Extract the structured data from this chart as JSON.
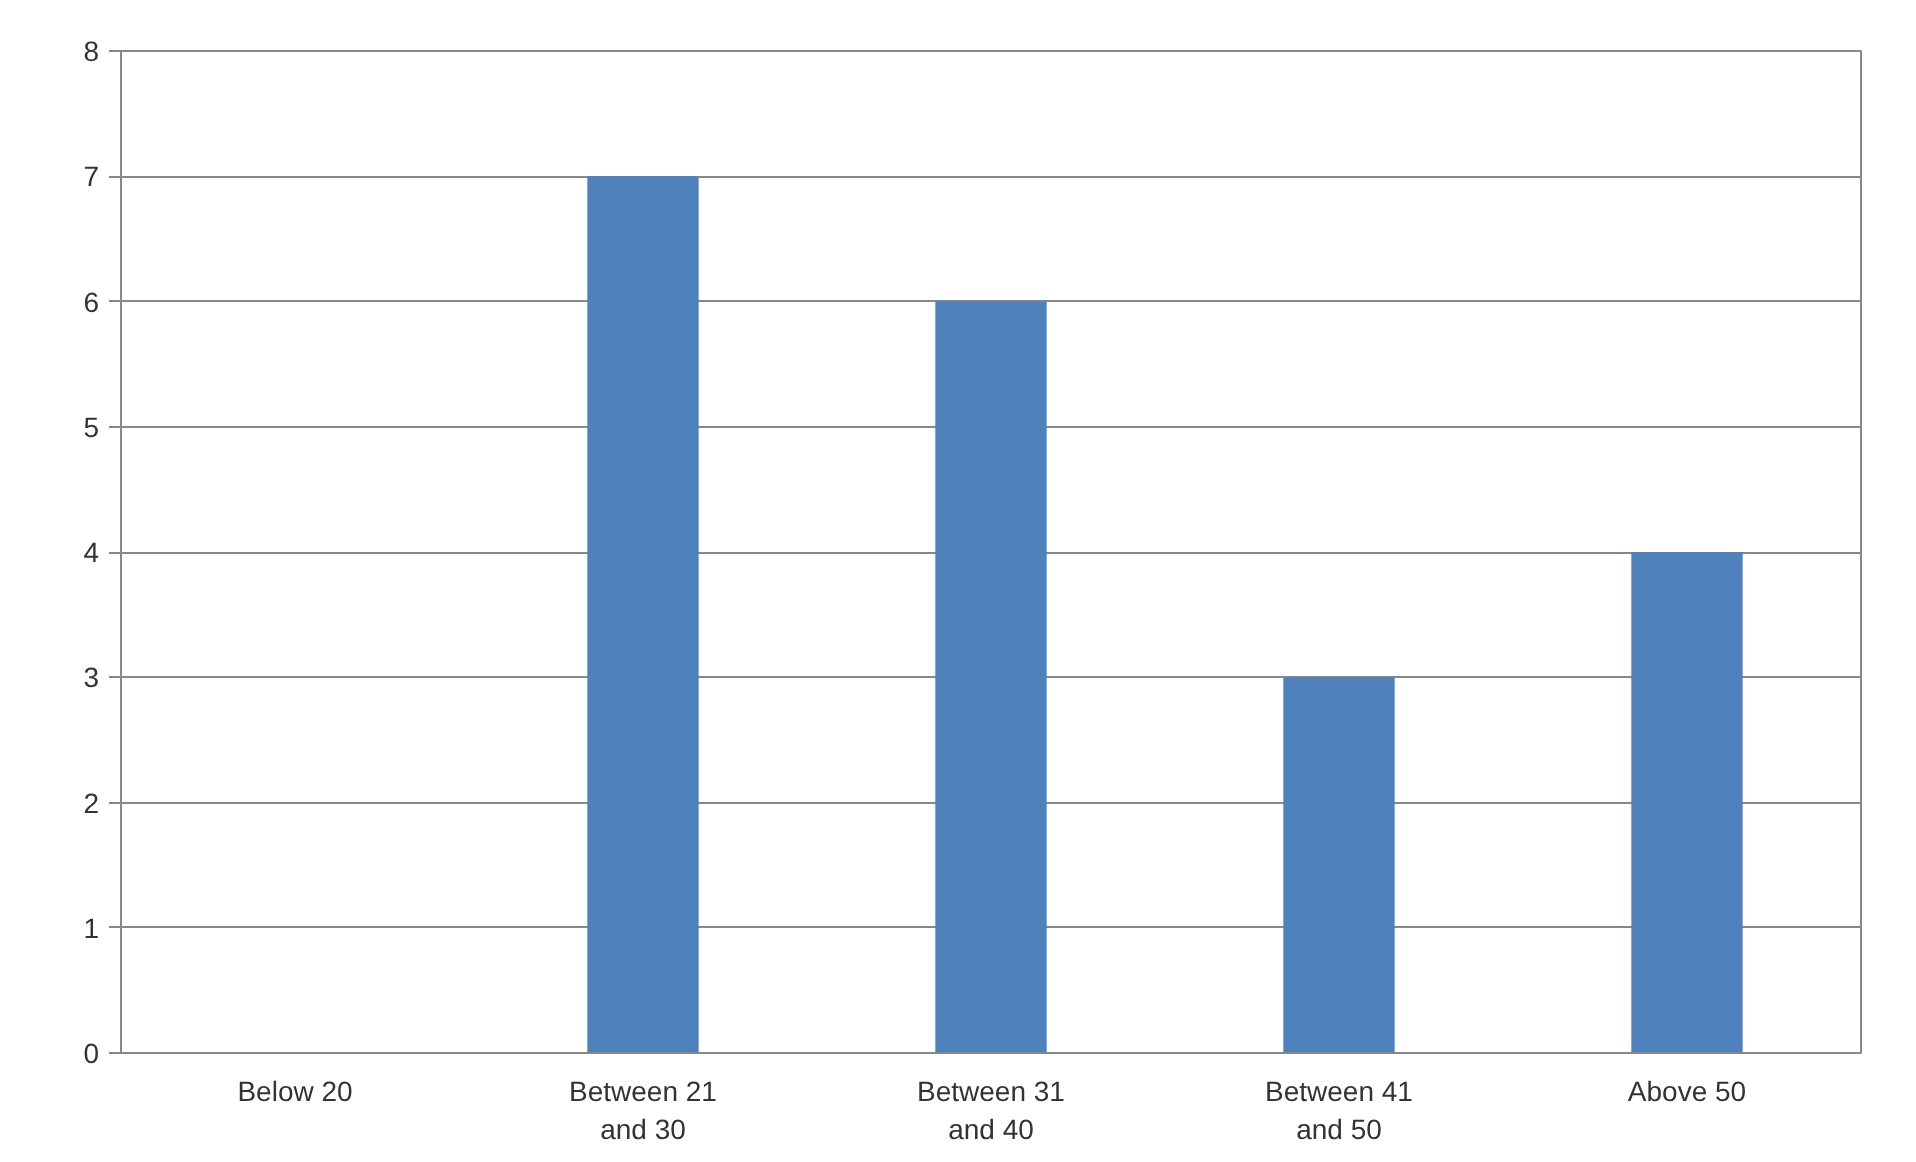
{
  "chart_data": {
    "type": "bar",
    "categories": [
      "Below 20",
      "Between 21 and 30",
      "Between 31 and 40",
      "Between 41 and 50",
      "Above 50"
    ],
    "values": [
      0,
      7,
      6,
      3,
      4
    ],
    "color": "#4f81bd",
    "ylim": [
      0,
      8
    ],
    "yticks": [
      0,
      1,
      2,
      3,
      4,
      5,
      6,
      7,
      8
    ],
    "grid": "y"
  }
}
